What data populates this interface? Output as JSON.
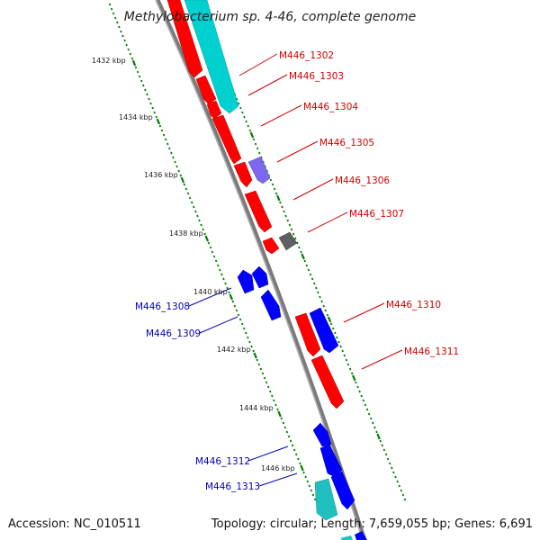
{
  "title": "Methylobacterium sp. 4-46, complete genome",
  "footer": {
    "accession": "Accession: NC_010511",
    "summary": "Topology: circular; Length: 7,659,055 bp; Genes: 6,691"
  },
  "colors": {
    "backbone": "#808080",
    "forward_gene": "#ff0000",
    "reverse_gene": "#0000ff",
    "cyan_feature": "#00c8c8",
    "purple_feature": "#7b68ee",
    "gray_feature": "#606060",
    "tick": "#008000"
  },
  "ticks": [
    {
      "label": "1432 kbp"
    },
    {
      "label": "1434 kbp"
    },
    {
      "label": "1436 kbp"
    },
    {
      "label": "1438 kbp"
    },
    {
      "label": "1440 kbp"
    },
    {
      "label": "1442 kbp"
    },
    {
      "label": "1444 kbp"
    },
    {
      "label": "1446 kbp"
    }
  ],
  "gene_labels_forward": [
    {
      "name": "M446_1302"
    },
    {
      "name": "M446_1303"
    },
    {
      "name": "M446_1304"
    },
    {
      "name": "M446_1305"
    },
    {
      "name": "M446_1306"
    },
    {
      "name": "M446_1307"
    },
    {
      "name": "M446_1310"
    },
    {
      "name": "M446_1311"
    }
  ],
  "gene_labels_reverse": [
    {
      "name": "M446_1308"
    },
    {
      "name": "M446_1309"
    },
    {
      "name": "M446_1312"
    },
    {
      "name": "M446_1313"
    }
  ]
}
